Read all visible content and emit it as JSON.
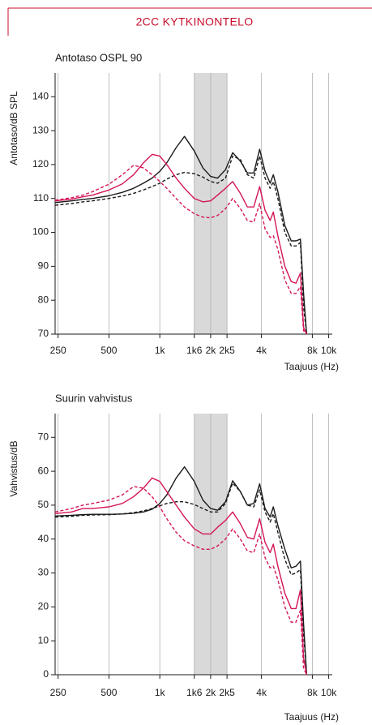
{
  "header": {
    "title": "2CC KYTKINONTELO"
  },
  "chart_data": [
    {
      "type": "line",
      "title": "Antotaso OSPL 90",
      "y_label": "Antotaso/dB SPL",
      "x_label": "Taajuus (Hz)",
      "xscale": "log",
      "xlim": [
        240,
        10500
      ],
      "ylim": [
        70,
        147
      ],
      "xticks": [
        250,
        500,
        {
          "value": 1000,
          "label": "1k"
        },
        {
          "value": 1600,
          "label": "1k6"
        },
        {
          "value": 2000,
          "label": "2k"
        },
        {
          "value": 2500,
          "label": "2k5"
        },
        {
          "value": 4000,
          "label": "4k"
        },
        {
          "value": 8000,
          "label": "8k"
        },
        {
          "value": 10000,
          "label": "10k"
        }
      ],
      "yticks": [
        70,
        80,
        90,
        100,
        110,
        120,
        130,
        140
      ],
      "shaded_range": [
        1600,
        2500
      ],
      "shaded_color": "#d9d9d9",
      "x": [
        240,
        300,
        350,
        400,
        500,
        600,
        700,
        800,
        900,
        1000,
        1100,
        1250,
        1400,
        1600,
        1800,
        2000,
        2200,
        2450,
        2700,
        3000,
        3300,
        3600,
        3900,
        4200,
        4500,
        4700,
        5000,
        5500,
        6000,
        6400,
        6800,
        7100,
        7400
      ],
      "series": [
        {
          "color": "#1a1a1a",
          "dashed": false,
          "values": [
            108.8,
            109.3,
            109.7,
            110,
            110.8,
            111.8,
            113,
            114.5,
            116,
            118,
            120.5,
            125,
            128.3,
            124,
            119,
            116.5,
            116,
            118.5,
            123.5,
            121,
            117.5,
            117.5,
            124.5,
            118,
            114.5,
            117,
            112,
            102,
            97.5,
            97.5,
            98,
            82,
            70
          ]
        },
        {
          "color": "#1a1a1a",
          "dashed": true,
          "values": [
            108,
            108.5,
            109,
            109.3,
            110,
            110.7,
            111.5,
            112.5,
            113.5,
            114.5,
            115.7,
            117,
            117.7,
            117.3,
            116.3,
            115,
            114.5,
            116,
            122.5,
            121.5,
            117,
            116,
            122.5,
            116,
            113,
            115,
            110,
            100,
            96,
            96,
            97,
            78,
            70
          ]
        },
        {
          "color": "#d4145a",
          "dashed": false,
          "values": [
            109.3,
            109.8,
            110.5,
            111,
            112.5,
            114.3,
            117,
            120.5,
            123,
            122.5,
            120,
            116,
            113,
            110,
            109,
            109.3,
            111,
            113,
            115,
            111.5,
            107.5,
            107.5,
            113.5,
            106.5,
            103.5,
            106,
            99,
            90,
            85.5,
            85,
            88,
            72,
            70
          ]
        },
        {
          "color": "#d4145a",
          "dashed": true,
          "values": [
            109.5,
            110.2,
            111,
            112,
            114.2,
            117,
            119.8,
            119,
            117,
            115,
            113,
            110,
            107.5,
            105.5,
            104.5,
            104.3,
            105,
            107,
            110,
            107,
            103.5,
            103,
            108.5,
            101,
            98.5,
            99,
            95,
            86,
            82,
            82,
            84,
            71,
            70
          ]
        }
      ]
    },
    {
      "type": "line",
      "title": "Suurin vahvistus",
      "y_label": "Vahvistus/dB",
      "x_label": "Taajuus (Hz)",
      "xscale": "log",
      "xlim": [
        240,
        10500
      ],
      "ylim": [
        0,
        77
      ],
      "xticks": [
        250,
        500,
        {
          "value": 1000,
          "label": "1k"
        },
        {
          "value": 1600,
          "label": "1k6"
        },
        {
          "value": 2000,
          "label": "2k"
        },
        {
          "value": 2500,
          "label": "2k5"
        },
        {
          "value": 4000,
          "label": "4k"
        },
        {
          "value": 8000,
          "label": "8k"
        },
        {
          "value": 10000,
          "label": "10k"
        }
      ],
      "yticks": [
        0,
        10,
        20,
        30,
        40,
        50,
        60,
        70
      ],
      "shaded_range": [
        1600,
        2500
      ],
      "shaded_color": "#d9d9d9",
      "x": [
        240,
        300,
        350,
        400,
        500,
        600,
        700,
        800,
        900,
        1000,
        1100,
        1250,
        1400,
        1600,
        1800,
        2000,
        2200,
        2450,
        2700,
        3000,
        3300,
        3600,
        3900,
        4200,
        4500,
        4700,
        5000,
        5500,
        6000,
        6400,
        6800,
        7100,
        7400
      ],
      "series": [
        {
          "color": "#1a1a1a",
          "dashed": false,
          "values": [
            46.8,
            47,
            47.2,
            47.3,
            47.3,
            47.4,
            47.6,
            48,
            48.8,
            50.5,
            53,
            58,
            61.3,
            57,
            51.5,
            49,
            48.5,
            51,
            57.2,
            54,
            50,
            50.5,
            56.3,
            49,
            46.5,
            49.5,
            44,
            37,
            31.5,
            32,
            33.5,
            15,
            0
          ]
        },
        {
          "color": "#1a1a1a",
          "dashed": true,
          "values": [
            46.5,
            46.7,
            47,
            47.1,
            47.2,
            47.4,
            47.8,
            48.3,
            49,
            49.8,
            50.5,
            51,
            51,
            50.2,
            49,
            48,
            48,
            50.5,
            56.5,
            54,
            50,
            49.5,
            54.5,
            48,
            45,
            47.5,
            42,
            34,
            29.5,
            30,
            31,
            12,
            0
          ]
        },
        {
          "color": "#d4145a",
          "dashed": false,
          "values": [
            47.5,
            48,
            49,
            49,
            49.5,
            50.5,
            52.5,
            55,
            58,
            57,
            54,
            50,
            46.5,
            43,
            41.5,
            41.5,
            43.5,
            45.5,
            48,
            44.5,
            40.5,
            40,
            46,
            39,
            36,
            38.5,
            32,
            24,
            19.5,
            19.5,
            25,
            5,
            0
          ]
        },
        {
          "color": "#d4145a",
          "dashed": true,
          "values": [
            48,
            49,
            50,
            50.5,
            51.5,
            53,
            55.5,
            55,
            52.5,
            49.5,
            46,
            42,
            39.5,
            38,
            37,
            37,
            38,
            40,
            43,
            40,
            36.5,
            36,
            41.5,
            34.5,
            31.5,
            32,
            28,
            20,
            15.5,
            15.5,
            19,
            2,
            0
          ]
        }
      ]
    }
  ]
}
